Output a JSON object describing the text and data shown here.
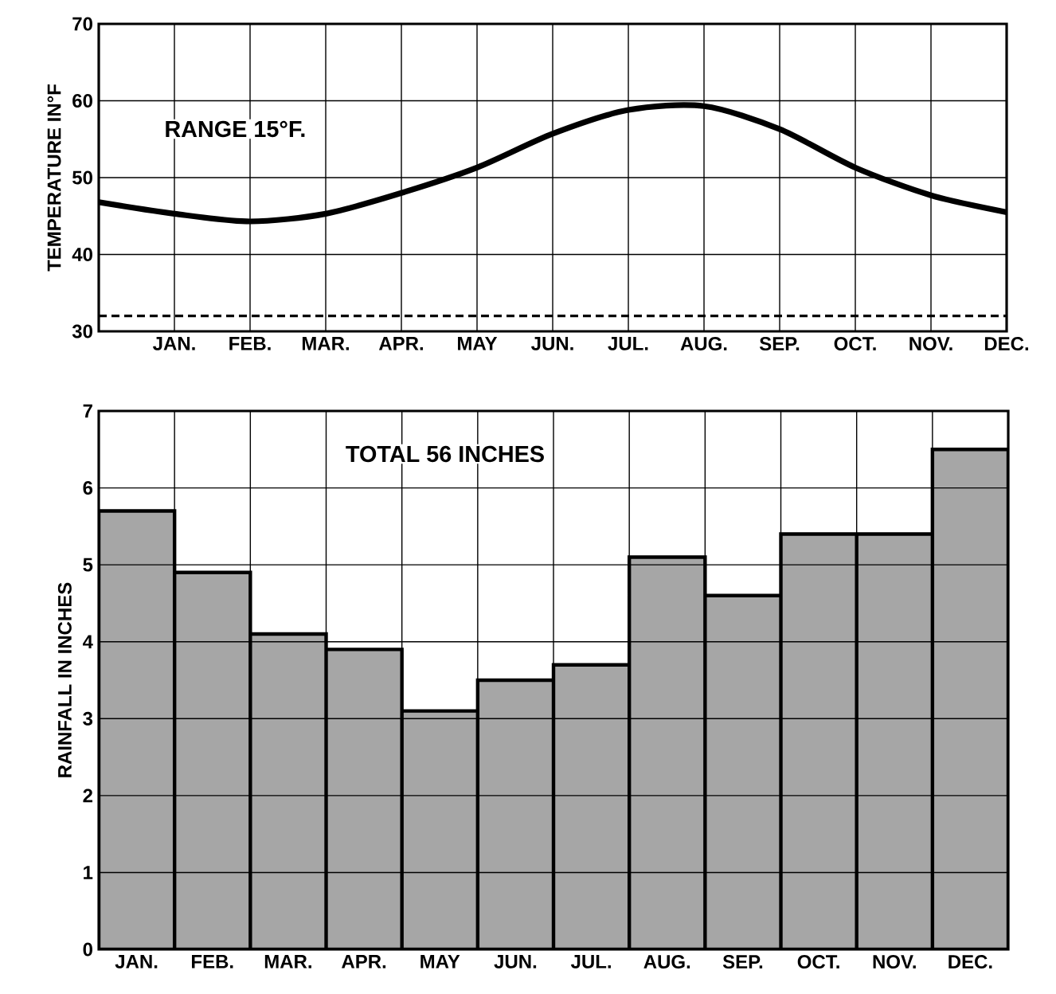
{
  "chart_data": [
    {
      "type": "line",
      "ylabel": "TEMPERATURE IN°F",
      "annotations": [
        "RANGE 15°F."
      ],
      "categories": [
        null,
        "JAN.",
        "FEB.",
        "MAR.",
        "APR.",
        "MAY",
        "JUN.",
        "JUL.",
        "AUG.",
        "SEP.",
        "OCT.",
        "NOV.",
        "DEC."
      ],
      "series": [
        {
          "color": "#000000",
          "values": [
            46.8,
            45.3,
            44.3,
            45.3,
            48,
            51.3,
            55.7,
            58.8,
            59.3,
            56.3,
            51.3,
            47.7,
            45.5
          ]
        }
      ],
      "ylim": [
        30,
        70
      ],
      "yticks": [
        30,
        40,
        50,
        60,
        70
      ],
      "ref_lines": [
        {
          "axis": "y",
          "value": 32,
          "line_style": "dashed",
          "color": "#000000"
        }
      ],
      "grid": true,
      "marker": "none",
      "line_style": "solid"
    },
    {
      "type": "bar",
      "ylabel": "RAINFALL IN INCHES",
      "annotations": [
        "TOTAL 56 INCHES"
      ],
      "categories": [
        "JAN.",
        "FEB.",
        "MAR.",
        "APR.",
        "MAY",
        "JUN.",
        "JUL.",
        "AUG.",
        "SEP.",
        "OCT.",
        "NOV.",
        "DEC."
      ],
      "values": [
        5.7,
        4.9,
        4.1,
        3.9,
        3.1,
        3.5,
        3.7,
        5.1,
        4.6,
        5.4,
        5.4,
        6.5
      ],
      "color": "#a6a6a6",
      "ylim": [
        0,
        7
      ],
      "yticks": [
        0,
        1,
        2,
        3,
        4,
        5,
        6,
        7
      ],
      "grid": true
    }
  ]
}
